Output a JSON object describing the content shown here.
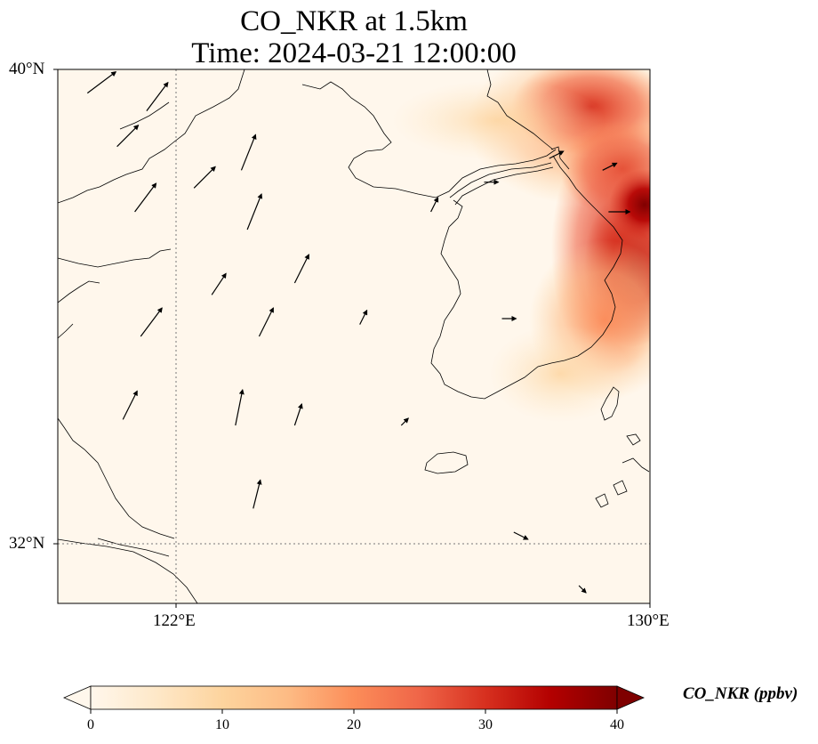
{
  "title": {
    "line1": "CO_NKR at 1.5km",
    "line2": "Time: 2024-03-21 12:00:00"
  },
  "axes": {
    "lat_labels": [
      "40°N",
      "32°N"
    ],
    "lon_labels": [
      "122°E",
      "130°E"
    ],
    "lat_range": [
      31,
      40
    ],
    "lon_range": [
      120,
      130
    ],
    "gridlines": {
      "lat": [
        32
      ],
      "lon": [
        122
      ],
      "style": "dotted"
    }
  },
  "colorbar": {
    "label": "CO_NKR (ppbv)",
    "ticks": [
      "0",
      "10",
      "20",
      "30",
      "40"
    ],
    "range": [
      0,
      40
    ],
    "extend": "both",
    "colormap": "OrRd",
    "colors": [
      "#fff7ec",
      "#fee8c8",
      "#fdd49e",
      "#fdbb84",
      "#fc8d59",
      "#ef6548",
      "#d7301f",
      "#b30000",
      "#7f0000"
    ]
  },
  "chart_data": {
    "type": "heatmap",
    "title": "CO_NKR at 1.5km Time: 2024-03-21 12:00:00",
    "variable": "CO_NKR",
    "units": "ppbv",
    "height": "1.5km",
    "time": "2024-03-21 12:00:00",
    "x_range": [
      120,
      130
    ],
    "y_range": [
      31,
      40
    ],
    "plume_hotspots": [
      {
        "lon": 128.5,
        "lat": 39.7,
        "value": 28
      },
      {
        "lon": 129.4,
        "lat": 39.5,
        "value": 34
      },
      {
        "lon": 129.5,
        "lat": 38.4,
        "value": 35
      },
      {
        "lon": 129.8,
        "lat": 37.0,
        "value": 40
      },
      {
        "lon": 129.5,
        "lat": 36.0,
        "value": 30
      },
      {
        "lon": 128.8,
        "lat": 37.6,
        "value": 24
      },
      {
        "lon": 128.8,
        "lat": 35.5,
        "value": 16
      },
      {
        "lon": 127.9,
        "lat": 35.0,
        "value": 12
      },
      {
        "lon": 127.2,
        "lat": 38.9,
        "value": 8
      },
      {
        "lon": 126.6,
        "lat": 39.4,
        "value": 6
      }
    ],
    "wind_vectors": [
      {
        "lon": 120.5,
        "lat": 39.6,
        "u": 4,
        "v": 3
      },
      {
        "lon": 121.0,
        "lat": 38.7,
        "u": 3,
        "v": 3
      },
      {
        "lon": 121.5,
        "lat": 39.3,
        "u": 3,
        "v": 4
      },
      {
        "lon": 121.3,
        "lat": 37.6,
        "u": 3,
        "v": 4
      },
      {
        "lon": 121.4,
        "lat": 35.5,
        "u": 3,
        "v": 4
      },
      {
        "lon": 121.1,
        "lat": 34.1,
        "u": 2,
        "v": 4
      },
      {
        "lon": 122.3,
        "lat": 38.0,
        "u": 3,
        "v": 3
      },
      {
        "lon": 122.6,
        "lat": 36.2,
        "u": 2,
        "v": 3
      },
      {
        "lon": 123.1,
        "lat": 38.3,
        "u": 2,
        "v": 5
      },
      {
        "lon": 123.2,
        "lat": 37.3,
        "u": 2,
        "v": 5
      },
      {
        "lon": 123.4,
        "lat": 35.5,
        "u": 2,
        "v": 4
      },
      {
        "lon": 123.0,
        "lat": 34.0,
        "u": 1,
        "v": 5
      },
      {
        "lon": 123.3,
        "lat": 32.6,
        "u": 1,
        "v": 4
      },
      {
        "lon": 124.0,
        "lat": 36.4,
        "u": 2,
        "v": 4
      },
      {
        "lon": 124.0,
        "lat": 34.0,
        "u": 1,
        "v": 3
      },
      {
        "lon": 125.1,
        "lat": 35.7,
        "u": 1,
        "v": 2
      },
      {
        "lon": 125.8,
        "lat": 34.0,
        "u": 1,
        "v": 1
      },
      {
        "lon": 126.3,
        "lat": 37.6,
        "u": 1,
        "v": 2
      },
      {
        "lon": 127.2,
        "lat": 38.1,
        "u": 2,
        "v": 0
      },
      {
        "lon": 127.5,
        "lat": 35.8,
        "u": 2,
        "v": 0
      },
      {
        "lon": 128.3,
        "lat": 38.5,
        "u": 2,
        "v": 1
      },
      {
        "lon": 129.3,
        "lat": 37.6,
        "u": 3,
        "v": 0
      },
      {
        "lon": 129.2,
        "lat": 38.3,
        "u": 2,
        "v": 1
      },
      {
        "lon": 127.7,
        "lat": 32.2,
        "u": 2,
        "v": -1
      },
      {
        "lon": 128.8,
        "lat": 31.3,
        "u": 1,
        "v": -1
      }
    ]
  }
}
